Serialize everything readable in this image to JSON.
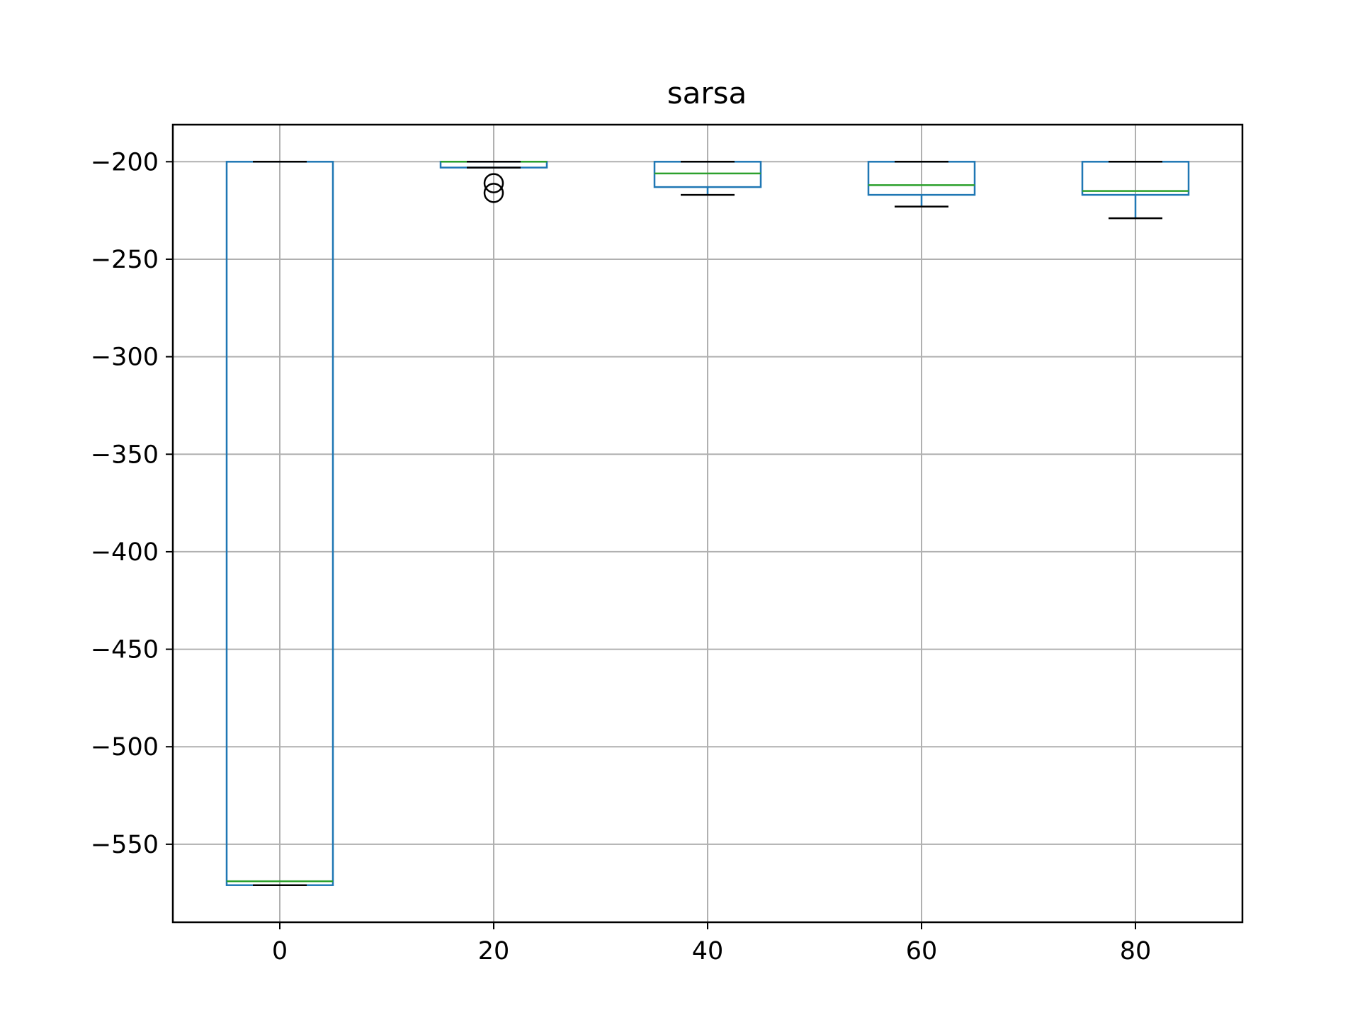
{
  "chart_data": {
    "type": "box",
    "title": "sarsa",
    "xlabel": "",
    "ylabel": "",
    "xlim": [
      -10,
      90
    ],
    "ylim": [
      -590,
      -181
    ],
    "grid": true,
    "x_ticks": [
      0,
      20,
      40,
      60,
      80
    ],
    "y_ticks": [
      -200,
      -250,
      -300,
      -350,
      -400,
      -450,
      -500,
      -550
    ],
    "x_tick_labels": [
      "0",
      "20",
      "40",
      "60",
      "80"
    ],
    "y_tick_labels": [
      "−200",
      "−250",
      "−300",
      "−350",
      "−400",
      "−450",
      "−500",
      "−550"
    ],
    "boxes": [
      {
        "x": 0,
        "whisker_high": -200,
        "q3": -200,
        "median": -569,
        "q1": -571,
        "whisker_low": -571,
        "outliers": []
      },
      {
        "x": 20,
        "whisker_high": -200,
        "q3": -200,
        "median": -200,
        "q1": -203,
        "whisker_low": -203,
        "outliers": [
          -211,
          -216
        ]
      },
      {
        "x": 40,
        "whisker_high": -200,
        "q3": -200,
        "median": -206,
        "q1": -213,
        "whisker_low": -217,
        "outliers": []
      },
      {
        "x": 60,
        "whisker_high": -200,
        "q3": -200,
        "median": -212,
        "q1": -217,
        "whisker_low": -223,
        "outliers": []
      },
      {
        "x": 80,
        "whisker_high": -200,
        "q3": -200,
        "median": -215,
        "q1": -217,
        "whisker_low": -229,
        "outliers": []
      }
    ],
    "colors": {
      "box": "#1f77b4",
      "median": "#2ca02c",
      "whisker_cap": "#000000",
      "grid": "#b0b0b0",
      "axes": "#000000",
      "outlier": "#000000"
    }
  }
}
